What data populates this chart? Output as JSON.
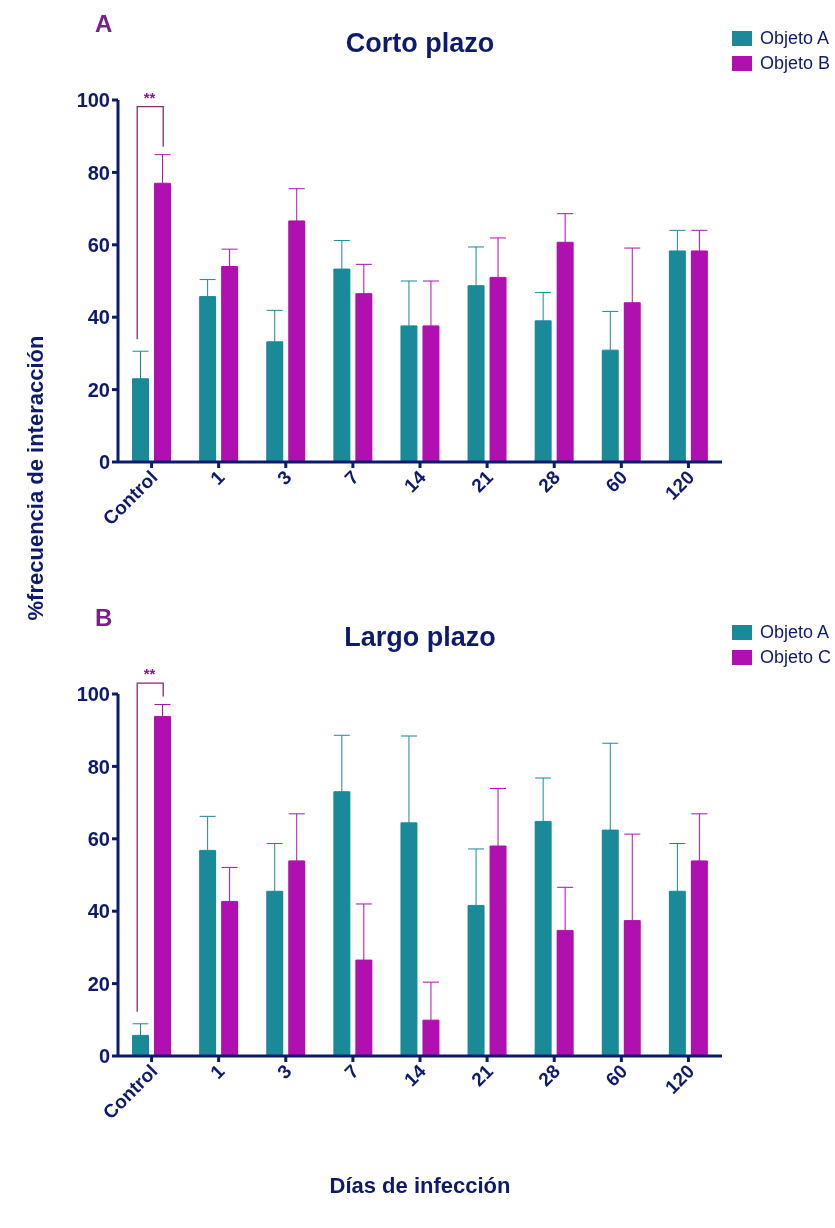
{
  "chart_data": [
    {
      "type": "bar",
      "title": "Corto plazo",
      "ylabel": "%frecuencia de interacción",
      "annotations": [
        "A",
        "**"
      ],
      "categories": [
        "Control",
        "1",
        "3",
        "7",
        "14",
        "21",
        "28",
        "60",
        "120"
      ],
      "series": [
        {
          "name": "Objeto A",
          "color": "#1a8a99",
          "values": [
            23.0,
            45.7,
            33.2,
            53.3,
            37.6,
            48.7,
            39.0,
            30.9,
            58.3
          ],
          "errors": [
            [
              23.0,
              30.6
            ],
            [
              45.7,
              50.4
            ],
            [
              33.2,
              41.9
            ],
            [
              53.3,
              61.2
            ],
            [
              37.6,
              50.0
            ],
            [
              48.7,
              59.4
            ],
            [
              39.0,
              46.8
            ],
            [
              30.9,
              41.6
            ],
            [
              58.3,
              64.0
            ]
          ]
        },
        {
          "name": "Objeto B",
          "color": "#b010b0",
          "values": [
            77.0,
            54.0,
            66.6,
            46.5,
            37.6,
            51.0,
            60.7,
            44.0,
            58.3
          ],
          "errors": [
            [
              77.0,
              84.9
            ],
            [
              54.0,
              58.8
            ],
            [
              66.6,
              75.5
            ],
            [
              46.5,
              54.6
            ],
            [
              37.6,
              50.0
            ],
            [
              51.0,
              61.9
            ],
            [
              60.7,
              68.6
            ],
            [
              44.0,
              59.1
            ],
            [
              58.3,
              64.0
            ]
          ]
        }
      ],
      "ylim": [
        0,
        100
      ],
      "yticks": [
        0,
        20,
        40,
        60,
        80,
        100
      ],
      "grid": false,
      "legend": "top right"
    },
    {
      "type": "bar",
      "title": "Largo plazo",
      "xlabel": "Días de infección",
      "annotations": [
        "B",
        "**"
      ],
      "categories": [
        "Control",
        "1",
        "3",
        "7",
        "14",
        "21",
        "28",
        "60",
        "120"
      ],
      "series": [
        {
          "name": "Objeto A",
          "color": "#1a8a99",
          "values": [
            5.7,
            56.8,
            45.5,
            73.0,
            64.4,
            41.6,
            64.8,
            62.4,
            45.5
          ],
          "errors": [
            [
              5.7,
              8.9
            ],
            [
              56.8,
              66.2
            ],
            [
              45.5,
              58.7
            ],
            [
              73.0,
              88.6
            ],
            [
              64.4,
              88.4
            ],
            [
              41.6,
              57.2
            ],
            [
              64.8,
              76.8
            ],
            [
              62.4,
              86.4
            ],
            [
              45.5,
              58.7
            ]
          ]
        },
        {
          "name": "Objeto C",
          "color": "#b010b0",
          "values": [
            93.8,
            42.7,
            53.9,
            26.5,
            9.9,
            58.0,
            34.7,
            37.4,
            53.9
          ],
          "errors": [
            [
              93.8,
              97.1
            ],
            [
              42.7,
              52.1
            ],
            [
              53.9,
              66.9
            ],
            [
              26.5,
              42.0
            ],
            [
              9.9,
              20.4
            ],
            [
              58.0,
              73.9
            ],
            [
              34.7,
              46.6
            ],
            [
              37.4,
              61.3
            ],
            [
              53.9,
              66.9
            ]
          ]
        }
      ],
      "ylim": [
        0,
        100
      ],
      "yticks": [
        0,
        20,
        40,
        60,
        80,
        100
      ],
      "grid": false,
      "legend": "top right"
    }
  ]
}
